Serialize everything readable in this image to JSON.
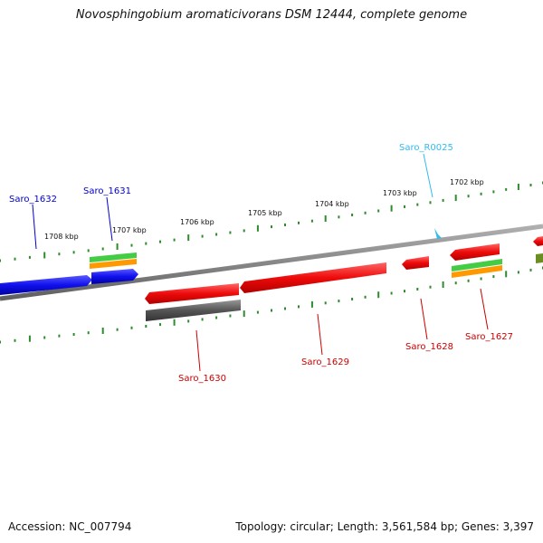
{
  "title": "Novosphingobium aromaticivorans DSM 12444, complete genome",
  "footer": {
    "accession": "Accession: NC_007794",
    "topology": "Topology: circular; Length: 3,561,584 bp; Genes: 3,397"
  },
  "colors": {
    "backbone": "#8a8a8a",
    "tick": "#2e8b2e",
    "forward_gene": "#1a1aff",
    "reverse_gene": "#ee1111",
    "rna": "#33bbee",
    "pseudo": "#666666",
    "feature_green": "#44cc44",
    "feature_orange": "#ff9900"
  },
  "scale_labels": [
    "1708 kbp",
    "1707 kbp",
    "1706 kbp",
    "1705 kbp",
    "1704 kbp",
    "1703 kbp",
    "1702 kbp"
  ],
  "genes": [
    {
      "id": "g1632",
      "label": "Saro_1632",
      "strand": "forward",
      "color": "#0000cc"
    },
    {
      "id": "g1631",
      "label": "Saro_1631",
      "strand": "forward",
      "color": "#0000cc"
    },
    {
      "id": "gR0025",
      "label": "Saro_R0025",
      "strand": "forward",
      "color": "#33bbee"
    },
    {
      "id": "g1630",
      "label": "Saro_1630",
      "strand": "reverse",
      "color": "#cc0000"
    },
    {
      "id": "g1629",
      "label": "Saro_1629",
      "strand": "reverse",
      "color": "#cc0000"
    },
    {
      "id": "g1628",
      "label": "Saro_1628",
      "strand": "reverse",
      "color": "#cc0000"
    },
    {
      "id": "g1627",
      "label": "Saro_1627",
      "strand": "reverse",
      "color": "#cc0000"
    }
  ]
}
